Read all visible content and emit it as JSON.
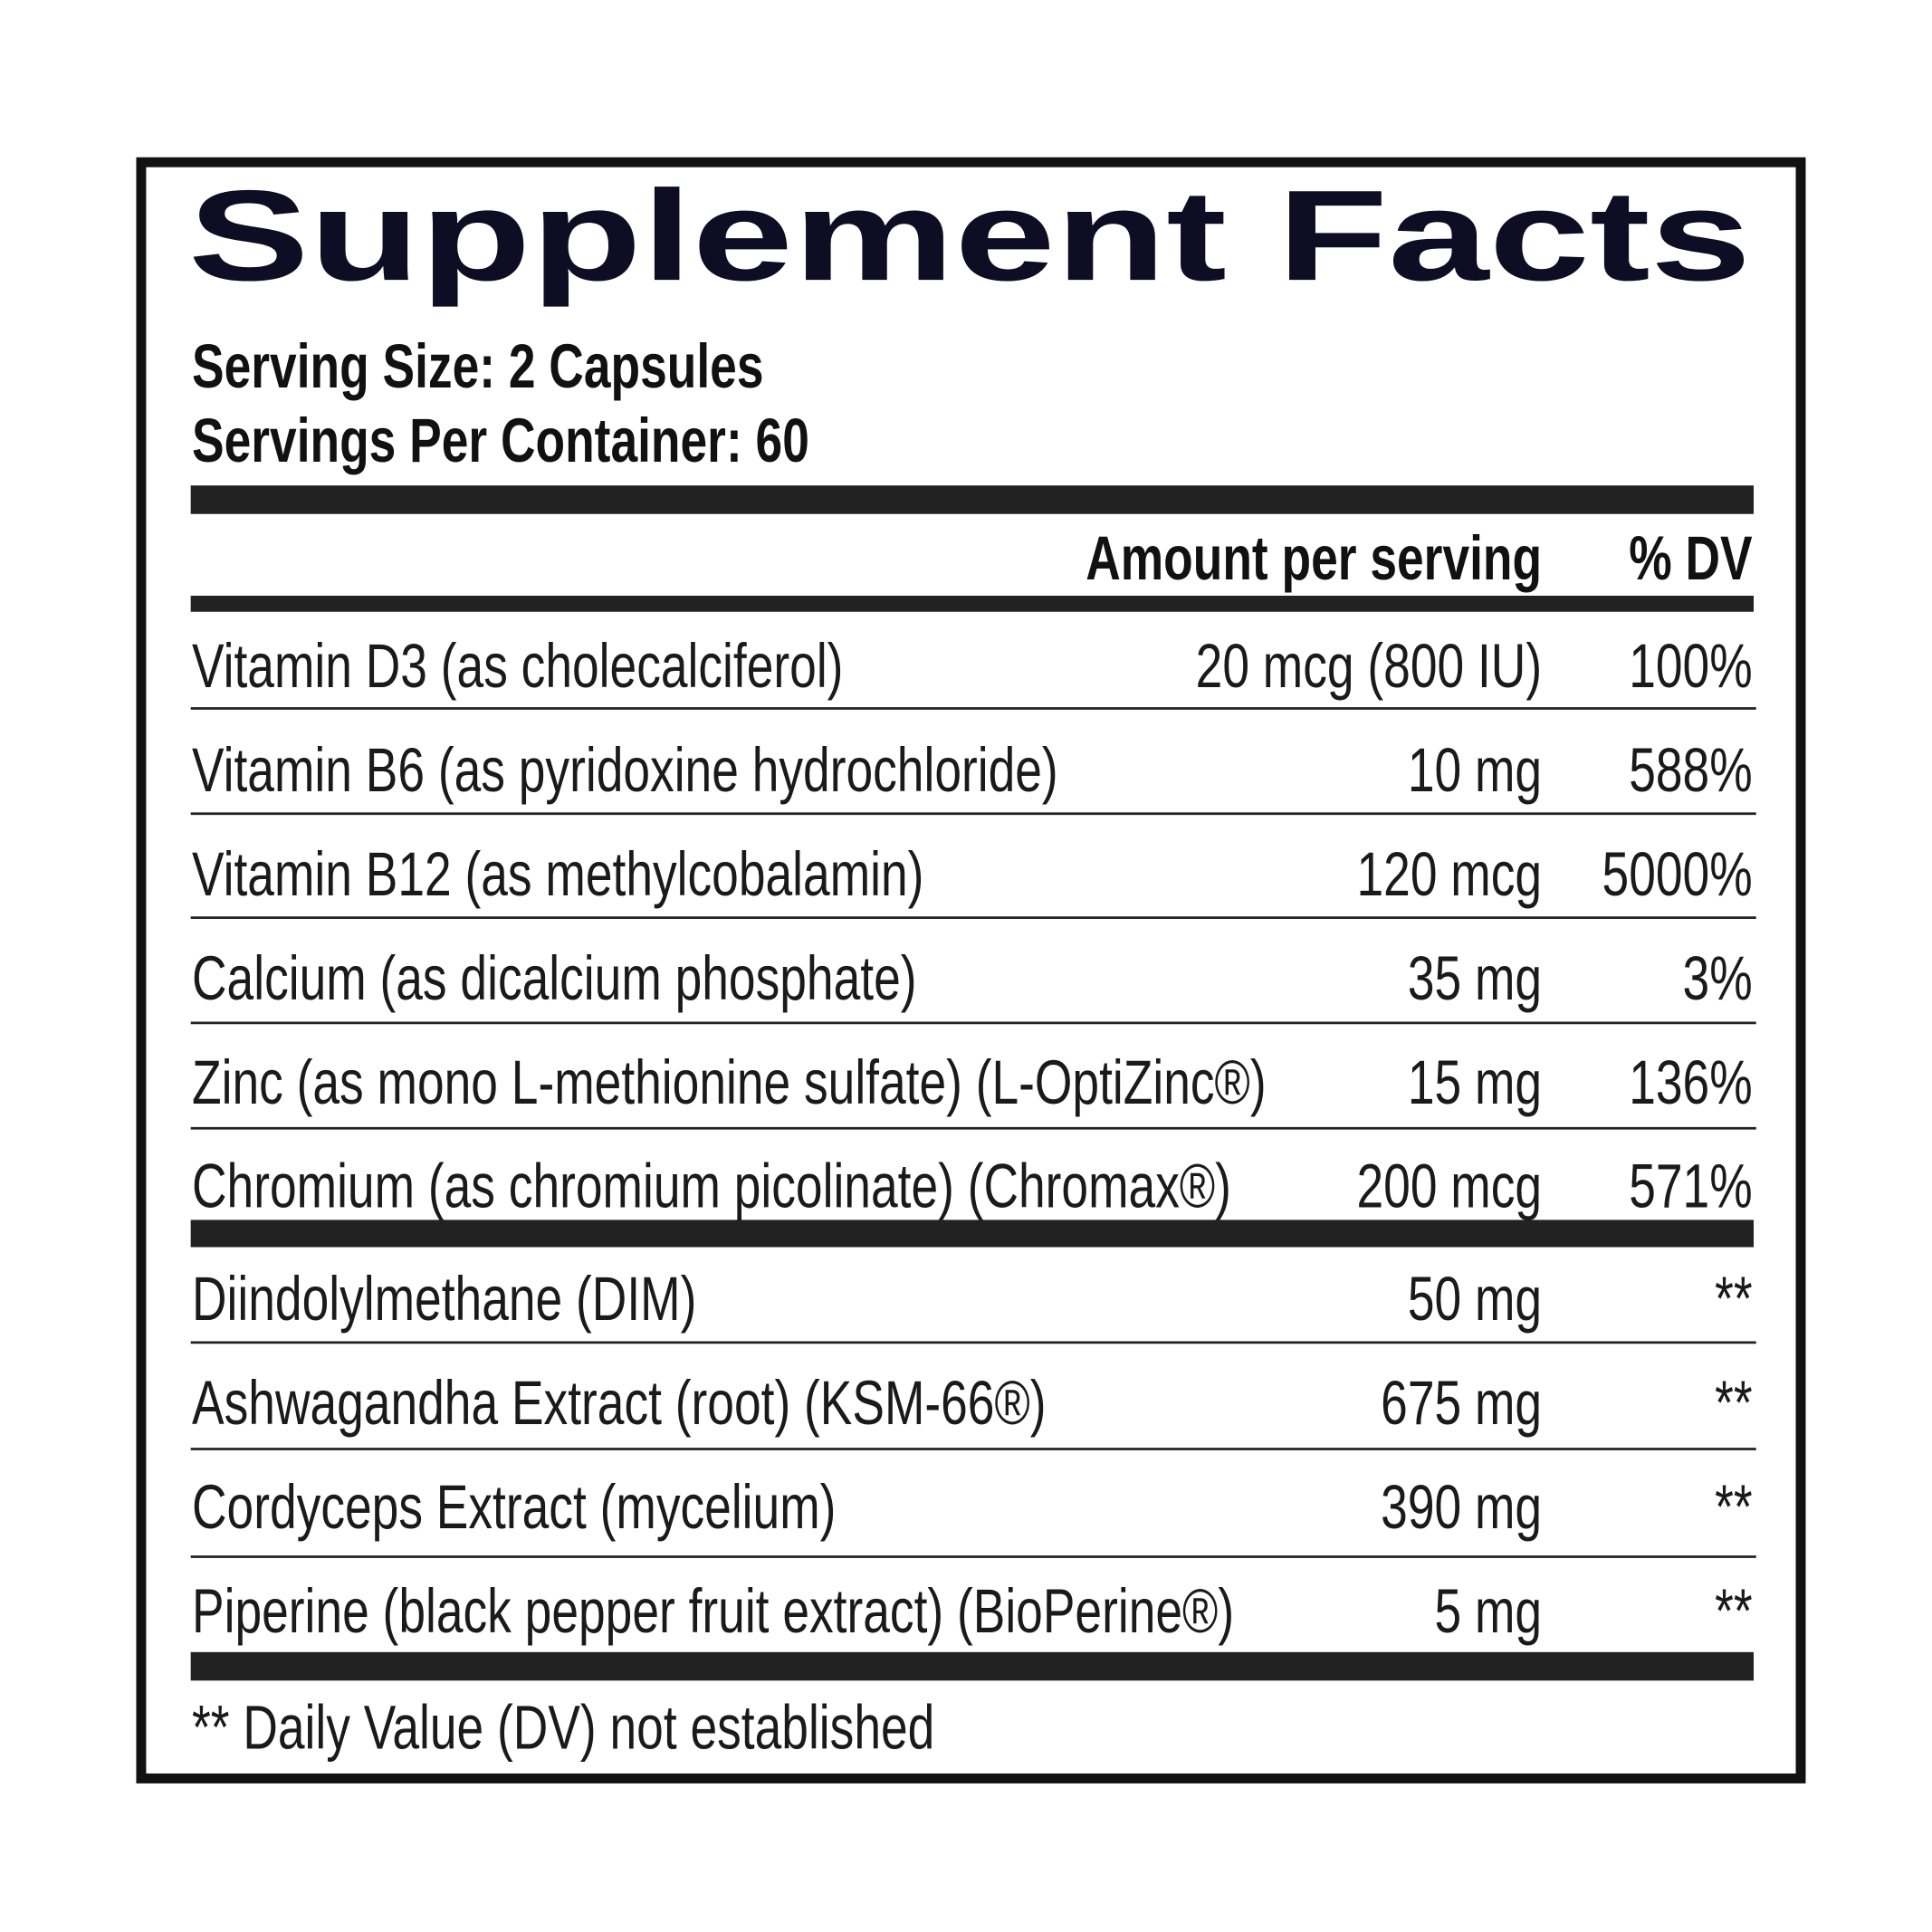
{
  "header": {
    "title": "Supplement Facts",
    "serving_size": "Serving Size: 2 Capsules",
    "servings_per_container": "Servings Per Container: 60"
  },
  "table": {
    "columns": [
      "Amount per serving",
      "% DV"
    ],
    "rows": [
      [
        "Vitamin D3 (as cholecalciferol)",
        "20 mcg (800 IU)",
        "100%"
      ],
      [
        "Vitamin B6 (as pyridoxine hydrochloride)",
        "10 mg",
        "588%"
      ],
      [
        "Vitamin B12 (as methylcobalamin)",
        "120 mcg",
        "5000%"
      ],
      [
        "Calcium (as dicalcium phosphate)",
        "35 mg",
        "3%"
      ],
      [
        "Zinc (as mono L-methionine sulfate) (L-OptiZinc®)",
        "15 mg",
        "136%"
      ],
      [
        "Chromium (as chromium picolinate) (Chromax®)",
        "200 mcg",
        "571%"
      ]
    ]
  },
  "table2": {
    "rows": [
      [
        "Diindolylmethane (DIM)",
        "50 mg",
        "**"
      ],
      [
        "Ashwagandha Extract (root) (KSM-66®)",
        "675 mg",
        "**"
      ],
      [
        "Cordyceps Extract (mycelium)",
        "390 mg",
        "**"
      ],
      [
        "Piperine (black pepper fruit extract) (BioPerine®)",
        "5 mg",
        "**"
      ]
    ]
  },
  "footnote": "** Daily Value (DV) not established"
}
